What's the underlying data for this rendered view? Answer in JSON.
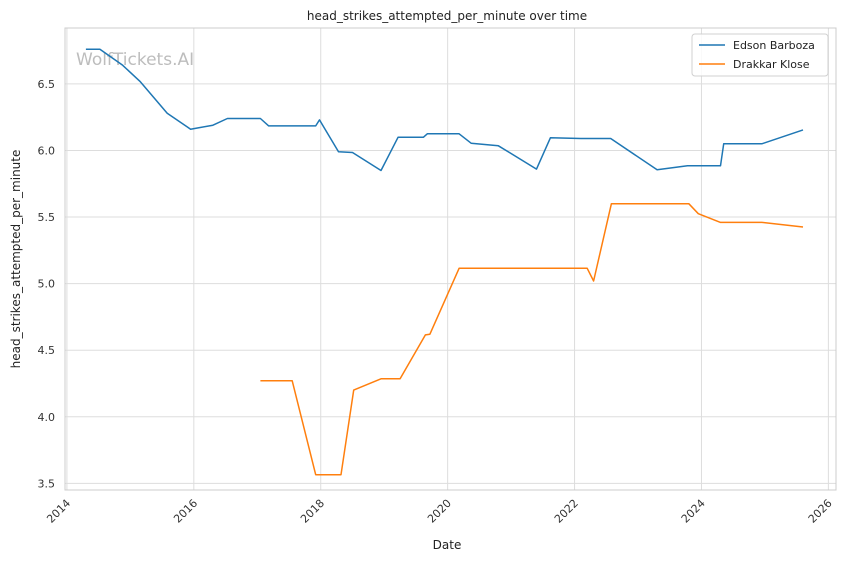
{
  "chart_data": {
    "type": "line",
    "title": "head_strikes_attempted_per_minute over time",
    "xlabel": "Date",
    "ylabel": "head_strikes_attempted_per_minute",
    "watermark": "WolfTickets.AI",
    "xlim": [
      2013.97,
      2026.12
    ],
    "ylim": [
      3.45,
      6.92
    ],
    "x_ticks": [
      2014,
      2016,
      2018,
      2020,
      2022,
      2024,
      2026
    ],
    "y_ticks": [
      3.5,
      4.0,
      4.5,
      5.0,
      5.5,
      6.0,
      6.5
    ],
    "y_tick_labels": [
      "3.5",
      "4.0",
      "4.5",
      "5.0",
      "5.5",
      "6.0",
      "6.5"
    ],
    "grid": true,
    "legend_position": "top-right",
    "series": [
      {
        "name": "Edson Barboza",
        "color": "#1f77b4",
        "points": [
          [
            2014.3,
            6.76
          ],
          [
            2014.52,
            6.76
          ],
          [
            2014.88,
            6.64
          ],
          [
            2015.15,
            6.52
          ],
          [
            2015.58,
            6.28
          ],
          [
            2015.95,
            6.16
          ],
          [
            2016.3,
            6.19
          ],
          [
            2016.53,
            6.24
          ],
          [
            2017.05,
            6.24
          ],
          [
            2017.18,
            6.185
          ],
          [
            2017.92,
            6.185
          ],
          [
            2017.98,
            6.23
          ],
          [
            2018.28,
            5.99
          ],
          [
            2018.5,
            5.985
          ],
          [
            2018.95,
            5.85
          ],
          [
            2019.22,
            6.1
          ],
          [
            2019.62,
            6.1
          ],
          [
            2019.68,
            6.125
          ],
          [
            2020.18,
            6.125
          ],
          [
            2020.37,
            6.055
          ],
          [
            2020.8,
            6.035
          ],
          [
            2021.4,
            5.86
          ],
          [
            2021.62,
            6.095
          ],
          [
            2022.1,
            6.09
          ],
          [
            2022.57,
            6.09
          ],
          [
            2023.3,
            5.855
          ],
          [
            2023.78,
            5.885
          ],
          [
            2024.3,
            5.885
          ],
          [
            2024.35,
            6.05
          ],
          [
            2024.95,
            6.05
          ],
          [
            2025.6,
            6.155
          ]
        ]
      },
      {
        "name": "Drakkar Klose",
        "color": "#ff7f0e",
        "points": [
          [
            2017.05,
            4.27
          ],
          [
            2017.55,
            4.27
          ],
          [
            2017.92,
            3.565
          ],
          [
            2018.32,
            3.565
          ],
          [
            2018.52,
            4.2
          ],
          [
            2018.95,
            4.285
          ],
          [
            2019.25,
            4.285
          ],
          [
            2019.65,
            4.615
          ],
          [
            2019.72,
            4.62
          ],
          [
            2020.18,
            5.115
          ],
          [
            2022.2,
            5.115
          ],
          [
            2022.3,
            5.02
          ],
          [
            2022.58,
            5.6
          ],
          [
            2023.8,
            5.6
          ],
          [
            2023.95,
            5.525
          ],
          [
            2024.3,
            5.46
          ],
          [
            2024.95,
            5.46
          ],
          [
            2025.6,
            5.425
          ]
        ]
      }
    ]
  }
}
